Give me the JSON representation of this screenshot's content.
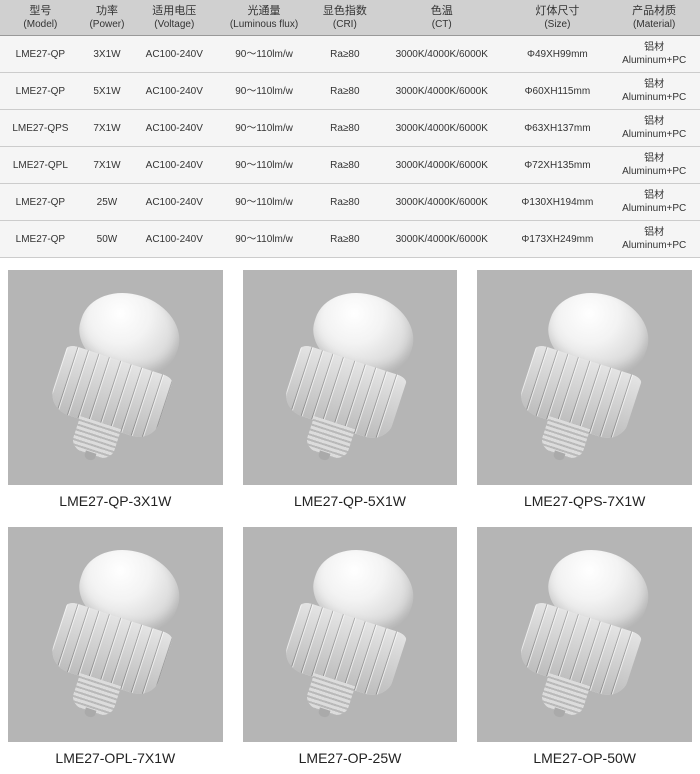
{
  "table": {
    "headers": [
      {
        "cn": "型号",
        "en": "(Model)"
      },
      {
        "cn": "功率",
        "en": "(Power)"
      },
      {
        "cn": "适用电压",
        "en": "(Voltage)"
      },
      {
        "cn": "光通量",
        "en": "(Luminous flux)"
      },
      {
        "cn": "显色指数",
        "en": "(CRI)"
      },
      {
        "cn": "色温",
        "en": "(CT)"
      },
      {
        "cn": "灯体尺寸",
        "en": "(Size)"
      },
      {
        "cn": "产品材质",
        "en": "(Material)"
      }
    ],
    "rows": [
      {
        "model": "LME27-QP",
        "power": "3X1W",
        "voltage": "AC100-240V",
        "flux": "90～110lm/w",
        "cri": "Ra≥80",
        "ct": "3000K/4000K/6000K",
        "size": "Φ49XH99mm",
        "mat_cn": "铝材",
        "mat_en": "Aluminum+PC"
      },
      {
        "model": "LME27-QP",
        "power": "5X1W",
        "voltage": "AC100-240V",
        "flux": "90～110lm/w",
        "cri": "Ra≥80",
        "ct": "3000K/4000K/6000K",
        "size": "Φ60XH115mm",
        "mat_cn": "铝材",
        "mat_en": "Aluminum+PC"
      },
      {
        "model": "LME27-QPS",
        "power": "7X1W",
        "voltage": "AC100-240V",
        "flux": "90～110lm/w",
        "cri": "Ra≥80",
        "ct": "3000K/4000K/6000K",
        "size": "Φ63XH137mm",
        "mat_cn": "铝材",
        "mat_en": "Aluminum+PC"
      },
      {
        "model": "LME27-QPL",
        "power": "7X1W",
        "voltage": "AC100-240V",
        "flux": "90～110lm/w",
        "cri": "Ra≥80",
        "ct": "3000K/4000K/6000K",
        "size": "Φ72XH135mm",
        "mat_cn": "铝材",
        "mat_en": "Aluminum+PC"
      },
      {
        "model": "LME27-QP",
        "power": "25W",
        "voltage": "AC100-240V",
        "flux": "90～110lm/w",
        "cri": "Ra≥80",
        "ct": "3000K/4000K/6000K",
        "size": "Φ130XH194mm",
        "mat_cn": "铝材",
        "mat_en": "Aluminum+PC"
      },
      {
        "model": "LME27-QP",
        "power": "50W",
        "voltage": "AC100-240V",
        "flux": "90～110lm/w",
        "cri": "Ra≥80",
        "ct": "3000K/4000K/6000K",
        "size": "Φ173XH249mm",
        "mat_cn": "铝材",
        "mat_en": "Aluminum+PC"
      }
    ]
  },
  "products": [
    {
      "label": "LME27-QP-3X1W"
    },
    {
      "label": "LME27-QP-5X1W"
    },
    {
      "label": "LME27-QPS-7X1W"
    },
    {
      "label": "LME27-OPL-7X1W"
    },
    {
      "label": "LME27-OP-25W"
    },
    {
      "label": "LME27-OP-50W"
    }
  ],
  "style": {
    "thumb_bg": "#b5b5b5",
    "header_bg": "#d0d0d0",
    "row_bg": "#f5f5f5"
  }
}
